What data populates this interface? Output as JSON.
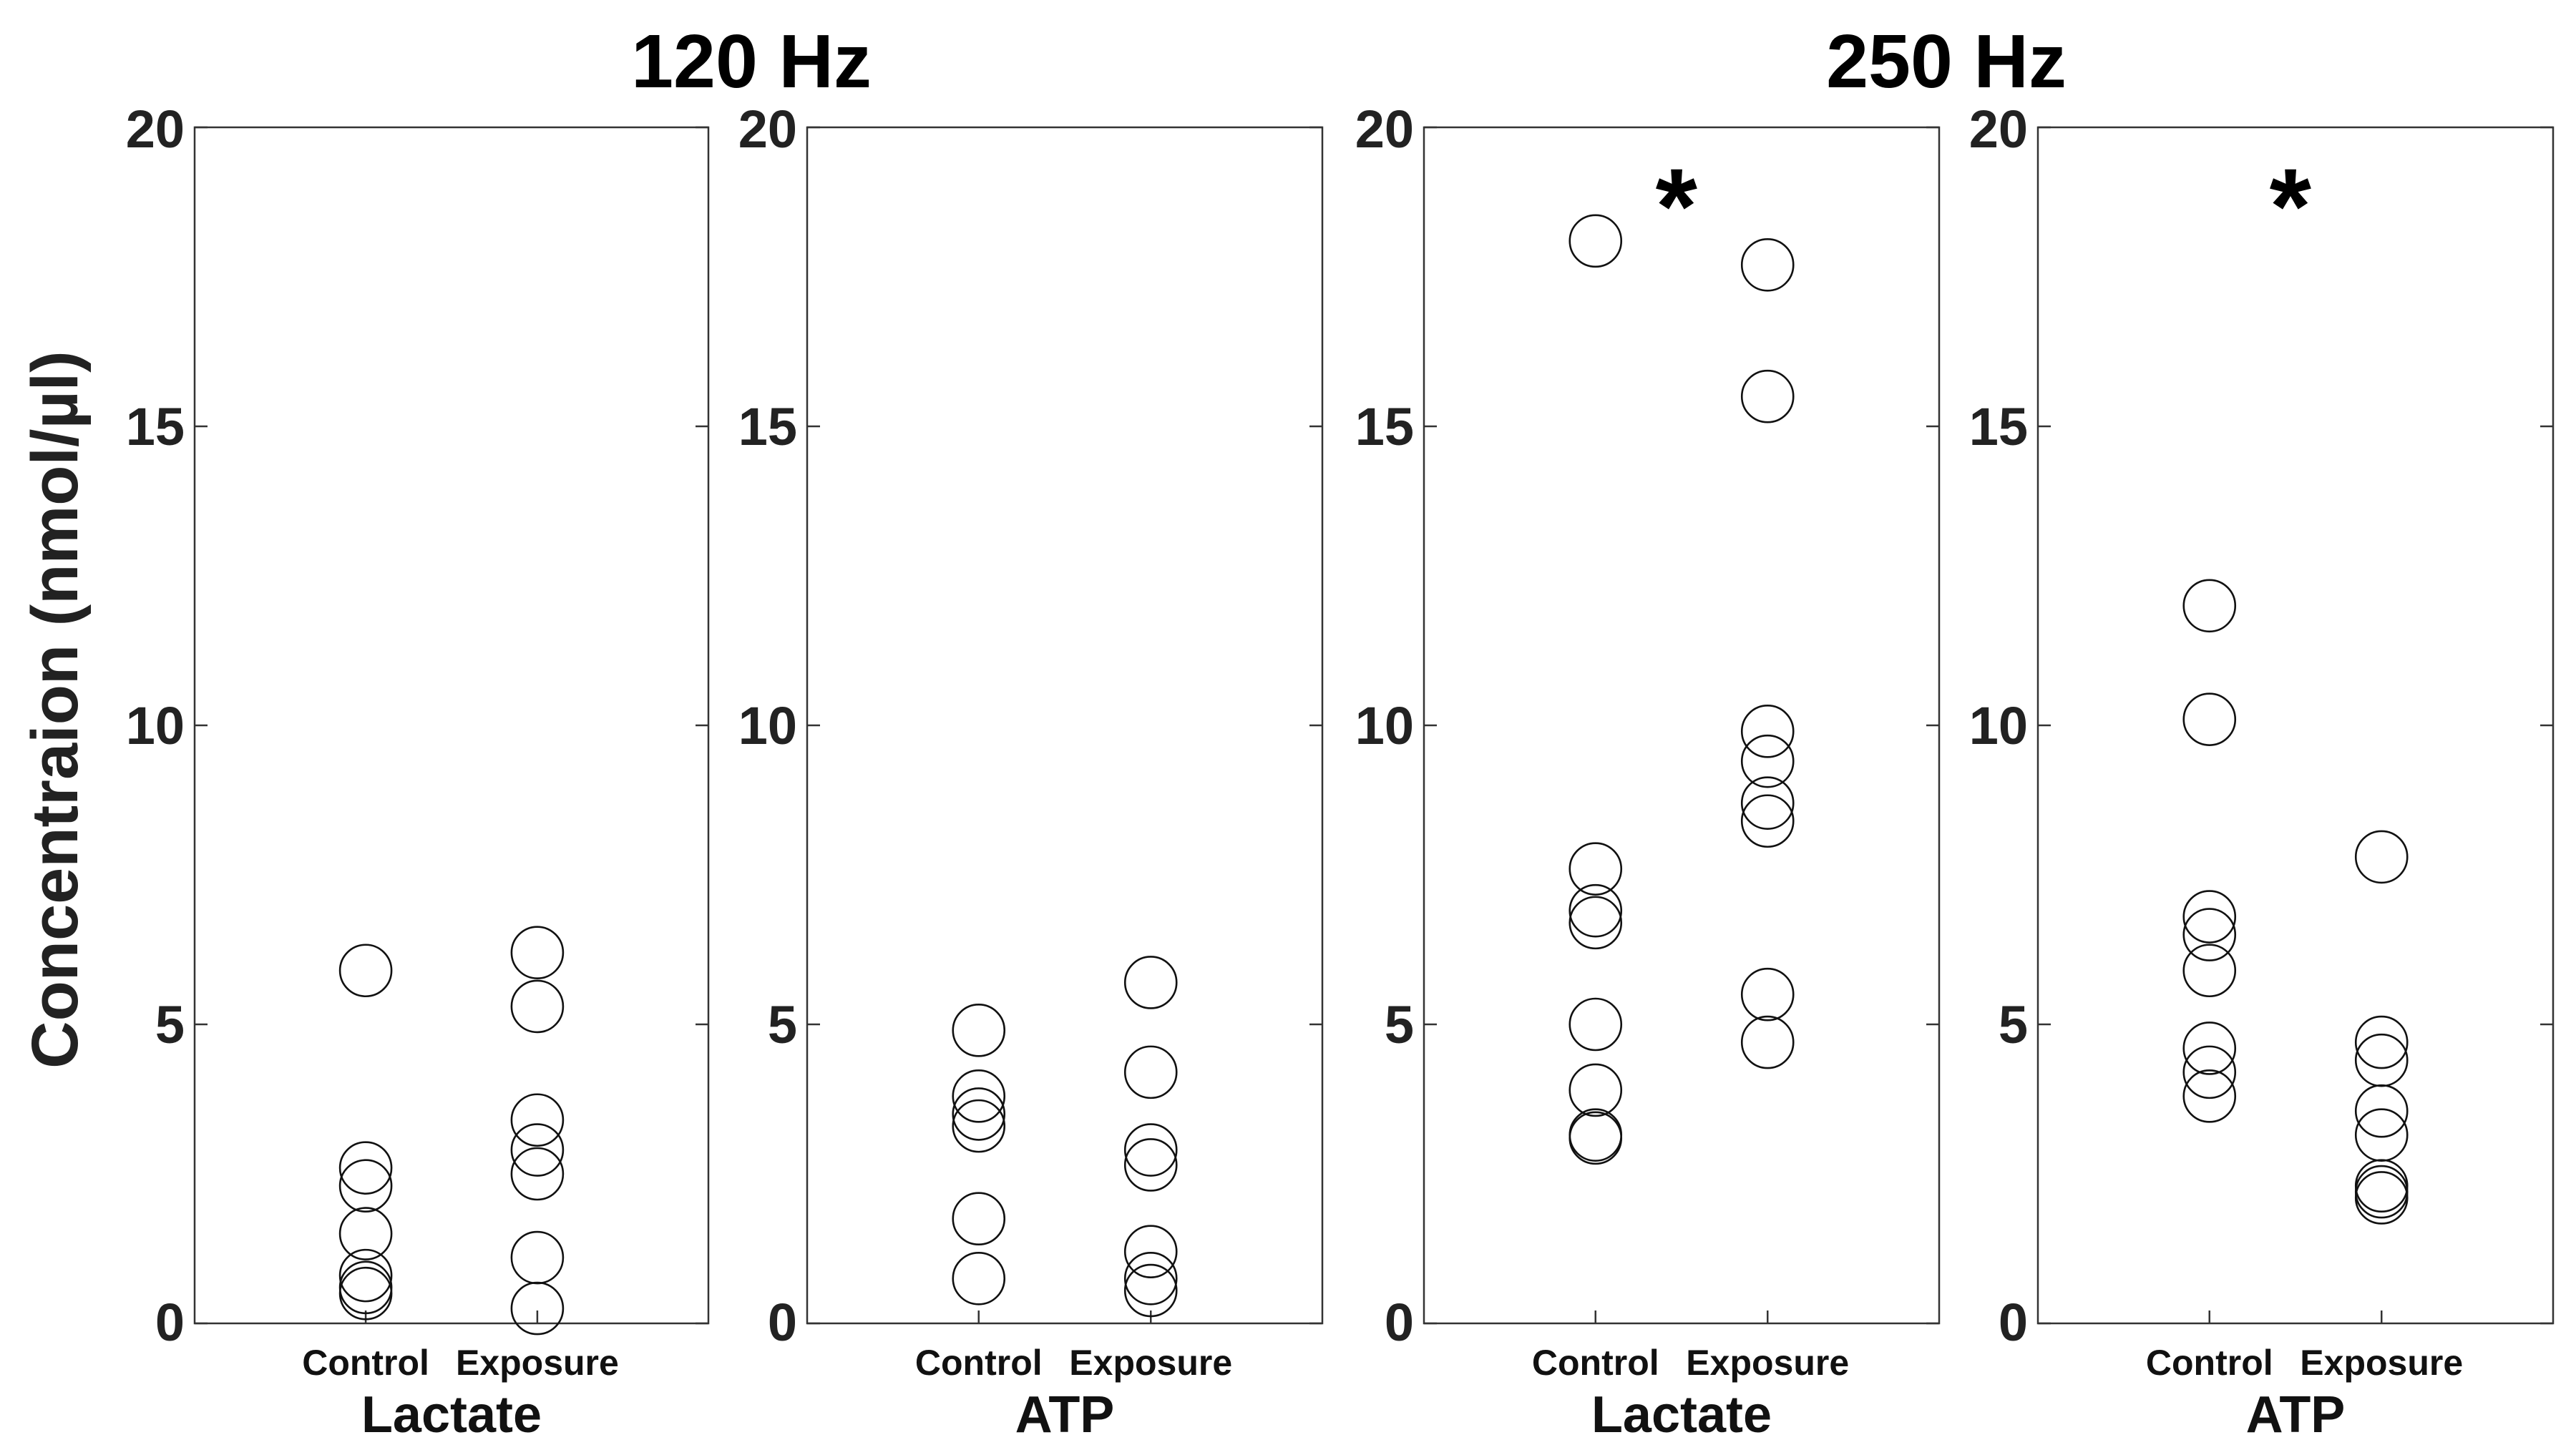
{
  "figure": {
    "ylabel": "Concentraion (nmol/µl)",
    "group_titles": [
      "120 Hz",
      "250 Hz"
    ]
  },
  "chart_data": [
    {
      "type": "scatter",
      "group": "120 Hz",
      "xlabel": "Lactate",
      "ylabel": "Concentraion (nmol/µl)",
      "categories": [
        "Control",
        "Exposure"
      ],
      "ylim": [
        0,
        20
      ],
      "yticks": [
        "0",
        "5",
        "10",
        "15",
        "20"
      ],
      "grid": false,
      "significance": "",
      "series": [
        {
          "values": [
            5.9,
            2.6,
            2.3,
            1.5,
            0.8,
            0.6,
            0.5
          ]
        },
        {
          "values": [
            6.2,
            5.3,
            3.4,
            2.9,
            2.5,
            1.1,
            0.25
          ]
        }
      ]
    },
    {
      "type": "scatter",
      "group": "120 Hz",
      "xlabel": "ATP",
      "ylabel": "Concentraion (nmol/µl)",
      "categories": [
        "Control",
        "Exposure"
      ],
      "ylim": [
        0,
        20
      ],
      "yticks": [
        "0",
        "5",
        "10",
        "15",
        "20"
      ],
      "grid": false,
      "significance": "",
      "series": [
        {
          "values": [
            4.9,
            3.8,
            3.5,
            3.3,
            1.75,
            0.75
          ]
        },
        {
          "values": [
            5.7,
            4.2,
            2.9,
            2.65,
            1.2,
            0.75,
            0.55
          ]
        }
      ]
    },
    {
      "type": "scatter",
      "group": "250 Hz",
      "xlabel": "Lactate",
      "ylabel": "Concentraion (nmol/µl)",
      "categories": [
        "Control",
        "Exposure"
      ],
      "ylim": [
        0,
        20
      ],
      "yticks": [
        "0",
        "5",
        "10",
        "15",
        "20"
      ],
      "grid": false,
      "significance": "*",
      "series": [
        {
          "values": [
            18.1,
            7.6,
            6.9,
            6.7,
            5.0,
            3.9,
            3.15,
            3.1
          ]
        },
        {
          "values": [
            17.7,
            15.5,
            9.9,
            9.4,
            8.7,
            8.4,
            5.5,
            4.7
          ]
        }
      ]
    },
    {
      "type": "scatter",
      "group": "250 Hz",
      "xlabel": "ATP",
      "ylabel": "Concentraion (nmol/µl)",
      "categories": [
        "Control",
        "Exposure"
      ],
      "ylim": [
        0,
        20
      ],
      "yticks": [
        "0",
        "5",
        "10",
        "15",
        "20"
      ],
      "grid": false,
      "significance": "*",
      "series": [
        {
          "values": [
            12.0,
            10.1,
            6.8,
            6.5,
            5.9,
            4.6,
            4.2,
            3.8
          ]
        },
        {
          "values": [
            7.8,
            4.7,
            4.4,
            3.55,
            3.15,
            2.3,
            2.2,
            2.1
          ]
        }
      ]
    }
  ]
}
